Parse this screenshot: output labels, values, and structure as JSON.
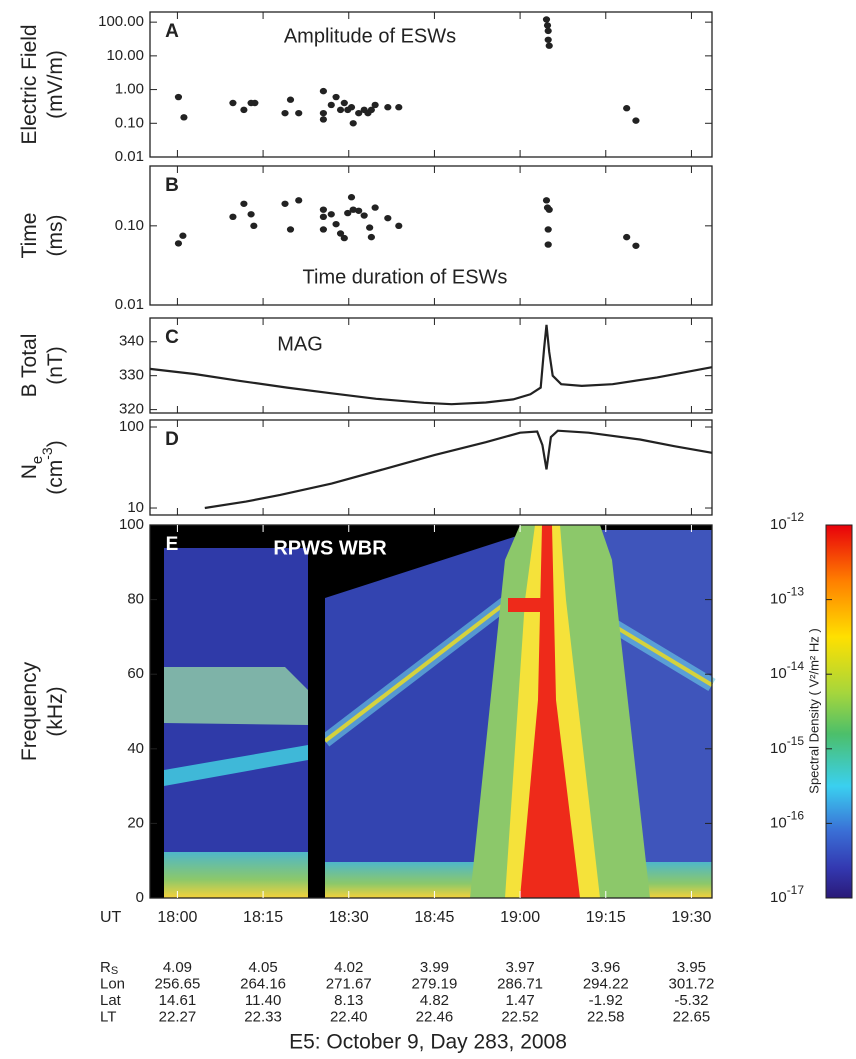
{
  "chart_data": [
    {
      "type": "scatter",
      "label": "A",
      "title": "Amplitude of ESWs",
      "ylabel": "Electric Field",
      "yunit": "(mV/m)",
      "log": true,
      "color": "#222222",
      "xlim": [
        17.92,
        19.56
      ],
      "xticks": [
        18,
        18.25,
        18.5,
        18.75,
        19,
        19.25,
        19.5
      ],
      "ylim": [
        0.01,
        200
      ],
      "yticks": [
        {
          "value": 100,
          "label": "100.00"
        },
        {
          "value": 10,
          "label": "10.00"
        },
        {
          "value": 1,
          "label": "1.00"
        },
        {
          "value": 0.1,
          "label": "0.10"
        },
        {
          "value": 0.01,
          "label": "0.01"
        }
      ],
      "x": [
        18.003,
        18.019,
        18.162,
        18.194,
        18.215,
        18.226,
        18.314,
        18.33,
        18.354,
        18.426,
        18.426,
        18.426,
        18.449,
        18.463,
        18.476,
        18.487,
        18.497,
        18.508,
        18.513,
        18.529,
        18.545,
        18.556,
        18.566,
        18.577,
        18.614,
        18.646,
        19.077,
        19.08,
        19.082,
        19.082,
        19.085,
        19.311,
        19.338
      ],
      "values": [
        0.6,
        0.15,
        0.4,
        0.25,
        0.4,
        0.4,
        0.2,
        0.5,
        0.2,
        0.9,
        0.2,
        0.13,
        0.35,
        0.6,
        0.25,
        0.4,
        0.25,
        0.3,
        0.1,
        0.2,
        0.25,
        0.2,
        0.25,
        0.35,
        0.3,
        0.3,
        120,
        80,
        55,
        30,
        20,
        0.28,
        0.12
      ]
    },
    {
      "type": "scatter",
      "label": "B",
      "title": "Time duration of ESWs",
      "ylabel": "Time",
      "yunit": "(ms)",
      "log": true,
      "color": "#222222",
      "xlim": [
        17.92,
        19.56
      ],
      "xticks": [
        18,
        18.25,
        18.5,
        18.75,
        19,
        19.25,
        19.5
      ],
      "ylim": [
        0.01,
        0.57
      ],
      "yticks": [
        {
          "value": 0.1,
          "label": "0.10"
        },
        {
          "value": 0.01,
          "label": "0.01"
        }
      ],
      "x": [
        18.003,
        18.016,
        18.162,
        18.194,
        18.215,
        18.223,
        18.314,
        18.33,
        18.354,
        18.426,
        18.426,
        18.426,
        18.449,
        18.463,
        18.476,
        18.487,
        18.497,
        18.508,
        18.513,
        18.529,
        18.545,
        18.561,
        18.566,
        18.577,
        18.614,
        18.646,
        19.077,
        19.08,
        19.082,
        19.082,
        19.085,
        19.311,
        19.338
      ],
      "values": [
        0.06,
        0.075,
        0.13,
        0.19,
        0.14,
        0.1,
        0.19,
        0.09,
        0.21,
        0.16,
        0.13,
        0.09,
        0.14,
        0.105,
        0.08,
        0.07,
        0.145,
        0.23,
        0.16,
        0.155,
        0.135,
        0.095,
        0.072,
        0.17,
        0.125,
        0.1,
        0.21,
        0.17,
        0.09,
        0.058,
        0.16,
        0.072,
        0.056
      ]
    },
    {
      "type": "line",
      "label": "C",
      "title": "MAG",
      "ylabel": "B Total",
      "yunit": "(nT)",
      "log": false,
      "color": "#222222",
      "xlim": [
        17.92,
        19.56
      ],
      "xticks": [
        18,
        18.25,
        18.5,
        18.75,
        19,
        19.25,
        19.5
      ],
      "ylim": [
        319,
        347
      ],
      "yticks": [
        320,
        330,
        340
      ],
      "x": [
        17.92,
        18.05,
        18.18,
        18.32,
        18.45,
        18.58,
        18.72,
        18.8,
        18.9,
        18.98,
        19.03,
        19.06,
        19.07,
        19.077,
        19.085,
        19.095,
        19.12,
        19.18,
        19.27,
        19.4,
        19.56
      ],
      "values": [
        332,
        330.5,
        328.5,
        326.5,
        324.8,
        323.2,
        322,
        321.6,
        322.1,
        323,
        324.5,
        326.5,
        338,
        345,
        337,
        330,
        327.5,
        327,
        327.5,
        329.5,
        332.5
      ]
    },
    {
      "type": "line",
      "label": "D",
      "ylabel": "N",
      "ylabel_sub": "e",
      "yunit": "(cm",
      "yunit_sup": "-3",
      "yunit_end": ")",
      "log": true,
      "color": "#222222",
      "xlim": [
        17.92,
        19.56
      ],
      "xticks": [
        18,
        18.25,
        18.5,
        18.75,
        19,
        19.25,
        19.5
      ],
      "ylim": [
        8.2,
        122
      ],
      "yticks": [
        10,
        100
      ],
      "x": [
        18.08,
        18.2,
        18.3,
        18.45,
        18.6,
        18.75,
        18.9,
        19.0,
        19.05,
        19.065,
        19.077,
        19.09,
        19.11,
        19.2,
        19.35,
        19.45,
        19.56
      ],
      "values": [
        10,
        12,
        14.5,
        20,
        30,
        45,
        65,
        85,
        88,
        60,
        30,
        75,
        90,
        85,
        70,
        58,
        48
      ]
    },
    {
      "type": "spectrogram",
      "label": "E",
      "title": "RPWS WBR",
      "ylabel": "Frequency",
      "yunit": "(kHz)",
      "log": false,
      "xlim": [
        17.92,
        19.56
      ],
      "xticks": [
        {
          "value": 18,
          "label": "18:00"
        },
        {
          "value": 18.25,
          "label": "18:15"
        },
        {
          "value": 18.5,
          "label": "18:30"
        },
        {
          "value": 18.75,
          "label": "18:45"
        },
        {
          "value": 19,
          "label": "19:00"
        },
        {
          "value": 19.25,
          "label": "19:15"
        },
        {
          "value": 19.5,
          "label": "19:30"
        }
      ],
      "ylim": [
        0,
        100
      ],
      "yticks": [
        0,
        20,
        40,
        60,
        80,
        100
      ]
    }
  ],
  "colorbar": {
    "label": "Spectral Density ( V²/m² Hz )",
    "lim": [
      1e-17,
      1e-12
    ],
    "ticks": [
      {
        "value": 1e-12,
        "label": "10",
        "exponent": "-12"
      },
      {
        "value": 1e-13,
        "label": "10",
        "exponent": "-13"
      },
      {
        "value": 1e-14,
        "label": "10",
        "exponent": "-14"
      },
      {
        "value": 1e-15,
        "label": "10",
        "exponent": "-15"
      },
      {
        "value": 1e-16,
        "label": "10",
        "exponent": "-16"
      },
      {
        "value": 1e-17,
        "label": "10",
        "exponent": "-17"
      }
    ]
  },
  "x_axis_label": "UT",
  "ephemeris": [
    {
      "label": "R",
      "label_sub": "S",
      "values": [
        "4.09",
        "4.05",
        "4.02",
        "3.99",
        "3.97",
        "3.96",
        "3.95"
      ]
    },
    {
      "label": "Lon",
      "values": [
        "256.65",
        "264.16",
        "271.67",
        "279.19",
        "286.71",
        "294.22",
        "301.72"
      ]
    },
    {
      "label": "Lat",
      "values": [
        "14.61",
        "11.40",
        "8.13",
        "4.82",
        "1.47",
        "-1.92",
        "-5.32"
      ]
    },
    {
      "label": "LT",
      "values": [
        "22.27",
        "22.33",
        "22.40",
        "22.46",
        "22.52",
        "22.58",
        "22.65"
      ]
    }
  ],
  "caption": "E5: October 9, Day 283, 2008"
}
